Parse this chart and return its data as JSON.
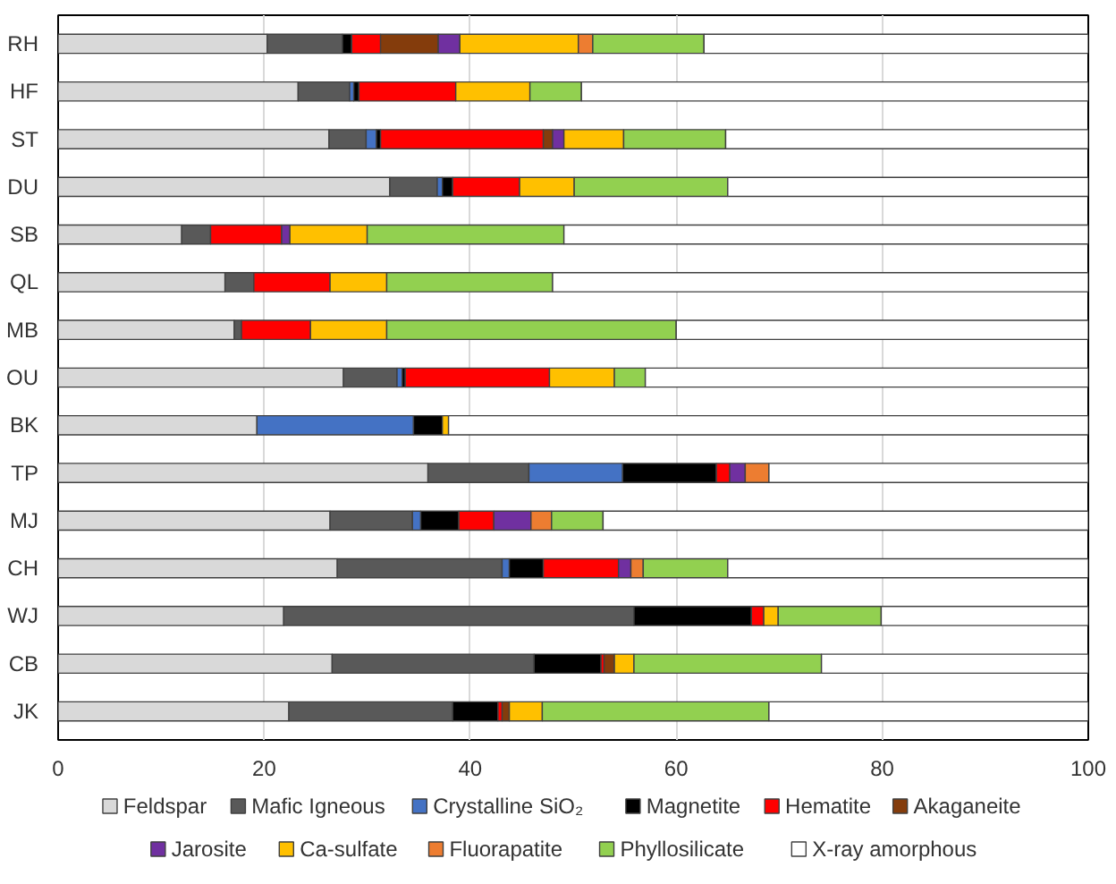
{
  "chart_data": {
    "type": "bar",
    "orientation": "horizontal",
    "stacked": true,
    "categories": [
      "RH",
      "HF",
      "ST",
      "DU",
      "SB",
      "QL",
      "MB",
      "OU",
      "BK",
      "TP",
      "MJ",
      "CH",
      "WJ",
      "CB",
      "JK"
    ],
    "xlim": [
      0,
      100
    ],
    "xticks": [
      0,
      20,
      40,
      60,
      80,
      100
    ],
    "grid": "x",
    "legend": "bottom",
    "series": [
      {
        "name": "Feldspar",
        "color": "#d9d9d9",
        "values": [
          20.3,
          23.3,
          26.3,
          32.2,
          12.0,
          16.2,
          17.1,
          27.7,
          19.3,
          35.9,
          26.4,
          27.1,
          21.9,
          26.6,
          22.4
        ]
      },
      {
        "name": "Mafic Igneous",
        "color": "#595959",
        "values": [
          7.3,
          5.0,
          3.6,
          4.6,
          2.8,
          2.8,
          0.7,
          5.2,
          0,
          9.8,
          8.0,
          16.0,
          34.0,
          19.6,
          15.9
        ]
      },
      {
        "name": "Crystalline SiO₂",
        "color": "#4472c4",
        "values": [
          0,
          0.4,
          1.0,
          0.5,
          0,
          0,
          0,
          0.5,
          15.2,
          9.1,
          0.8,
          0.7,
          0,
          0,
          0
        ]
      },
      {
        "name": "Magnetite",
        "color": "#000000",
        "values": [
          0.9,
          0.5,
          0.4,
          1.0,
          0,
          0,
          0,
          0.3,
          2.8,
          9.1,
          3.7,
          3.3,
          11.4,
          6.5,
          4.4
        ]
      },
      {
        "name": "Hematite",
        "color": "#ff0000",
        "values": [
          2.8,
          9.4,
          15.8,
          6.5,
          6.9,
          7.4,
          6.7,
          14.0,
          0,
          1.3,
          3.4,
          7.3,
          1.2,
          0.3,
          0.4
        ]
      },
      {
        "name": "Akaganeite",
        "color": "#843c0c",
        "values": [
          5.6,
          0,
          0.9,
          0,
          0,
          0,
          0,
          0,
          0,
          0,
          0,
          0,
          0,
          1.0,
          0.7
        ]
      },
      {
        "name": "Jarosite",
        "color": "#7030a0",
        "values": [
          2.1,
          0,
          1.1,
          0,
          0.8,
          0,
          0,
          0,
          0,
          1.5,
          3.6,
          1.2,
          0,
          0,
          0
        ]
      },
      {
        "name": "Ca-sulfate",
        "color": "#ffc000",
        "values": [
          11.5,
          7.2,
          5.8,
          5.3,
          7.5,
          5.5,
          7.4,
          6.3,
          0.6,
          0,
          0,
          0,
          1.4,
          1.9,
          3.2
        ]
      },
      {
        "name": "Fluorapatite",
        "color": "#ed7d31",
        "values": [
          1.4,
          0,
          0,
          0,
          0,
          0,
          0,
          0,
          0,
          2.3,
          2.0,
          1.2,
          0,
          0,
          0
        ]
      },
      {
        "name": "Phyllosilicate",
        "color": "#92d050",
        "values": [
          10.8,
          5.0,
          9.9,
          14.9,
          19.1,
          16.1,
          28.1,
          3.0,
          0,
          0,
          5.0,
          8.2,
          10.0,
          18.2,
          22.0
        ]
      },
      {
        "name": "X-ray amorphous",
        "color": "#ffffff",
        "values": [
          37.3,
          49.2,
          35.2,
          35.0,
          50.9,
          52.0,
          40.0,
          43.0,
          62.1,
          31.0,
          47.1,
          35.0,
          20.1,
          25.9,
          31.0
        ]
      }
    ]
  }
}
